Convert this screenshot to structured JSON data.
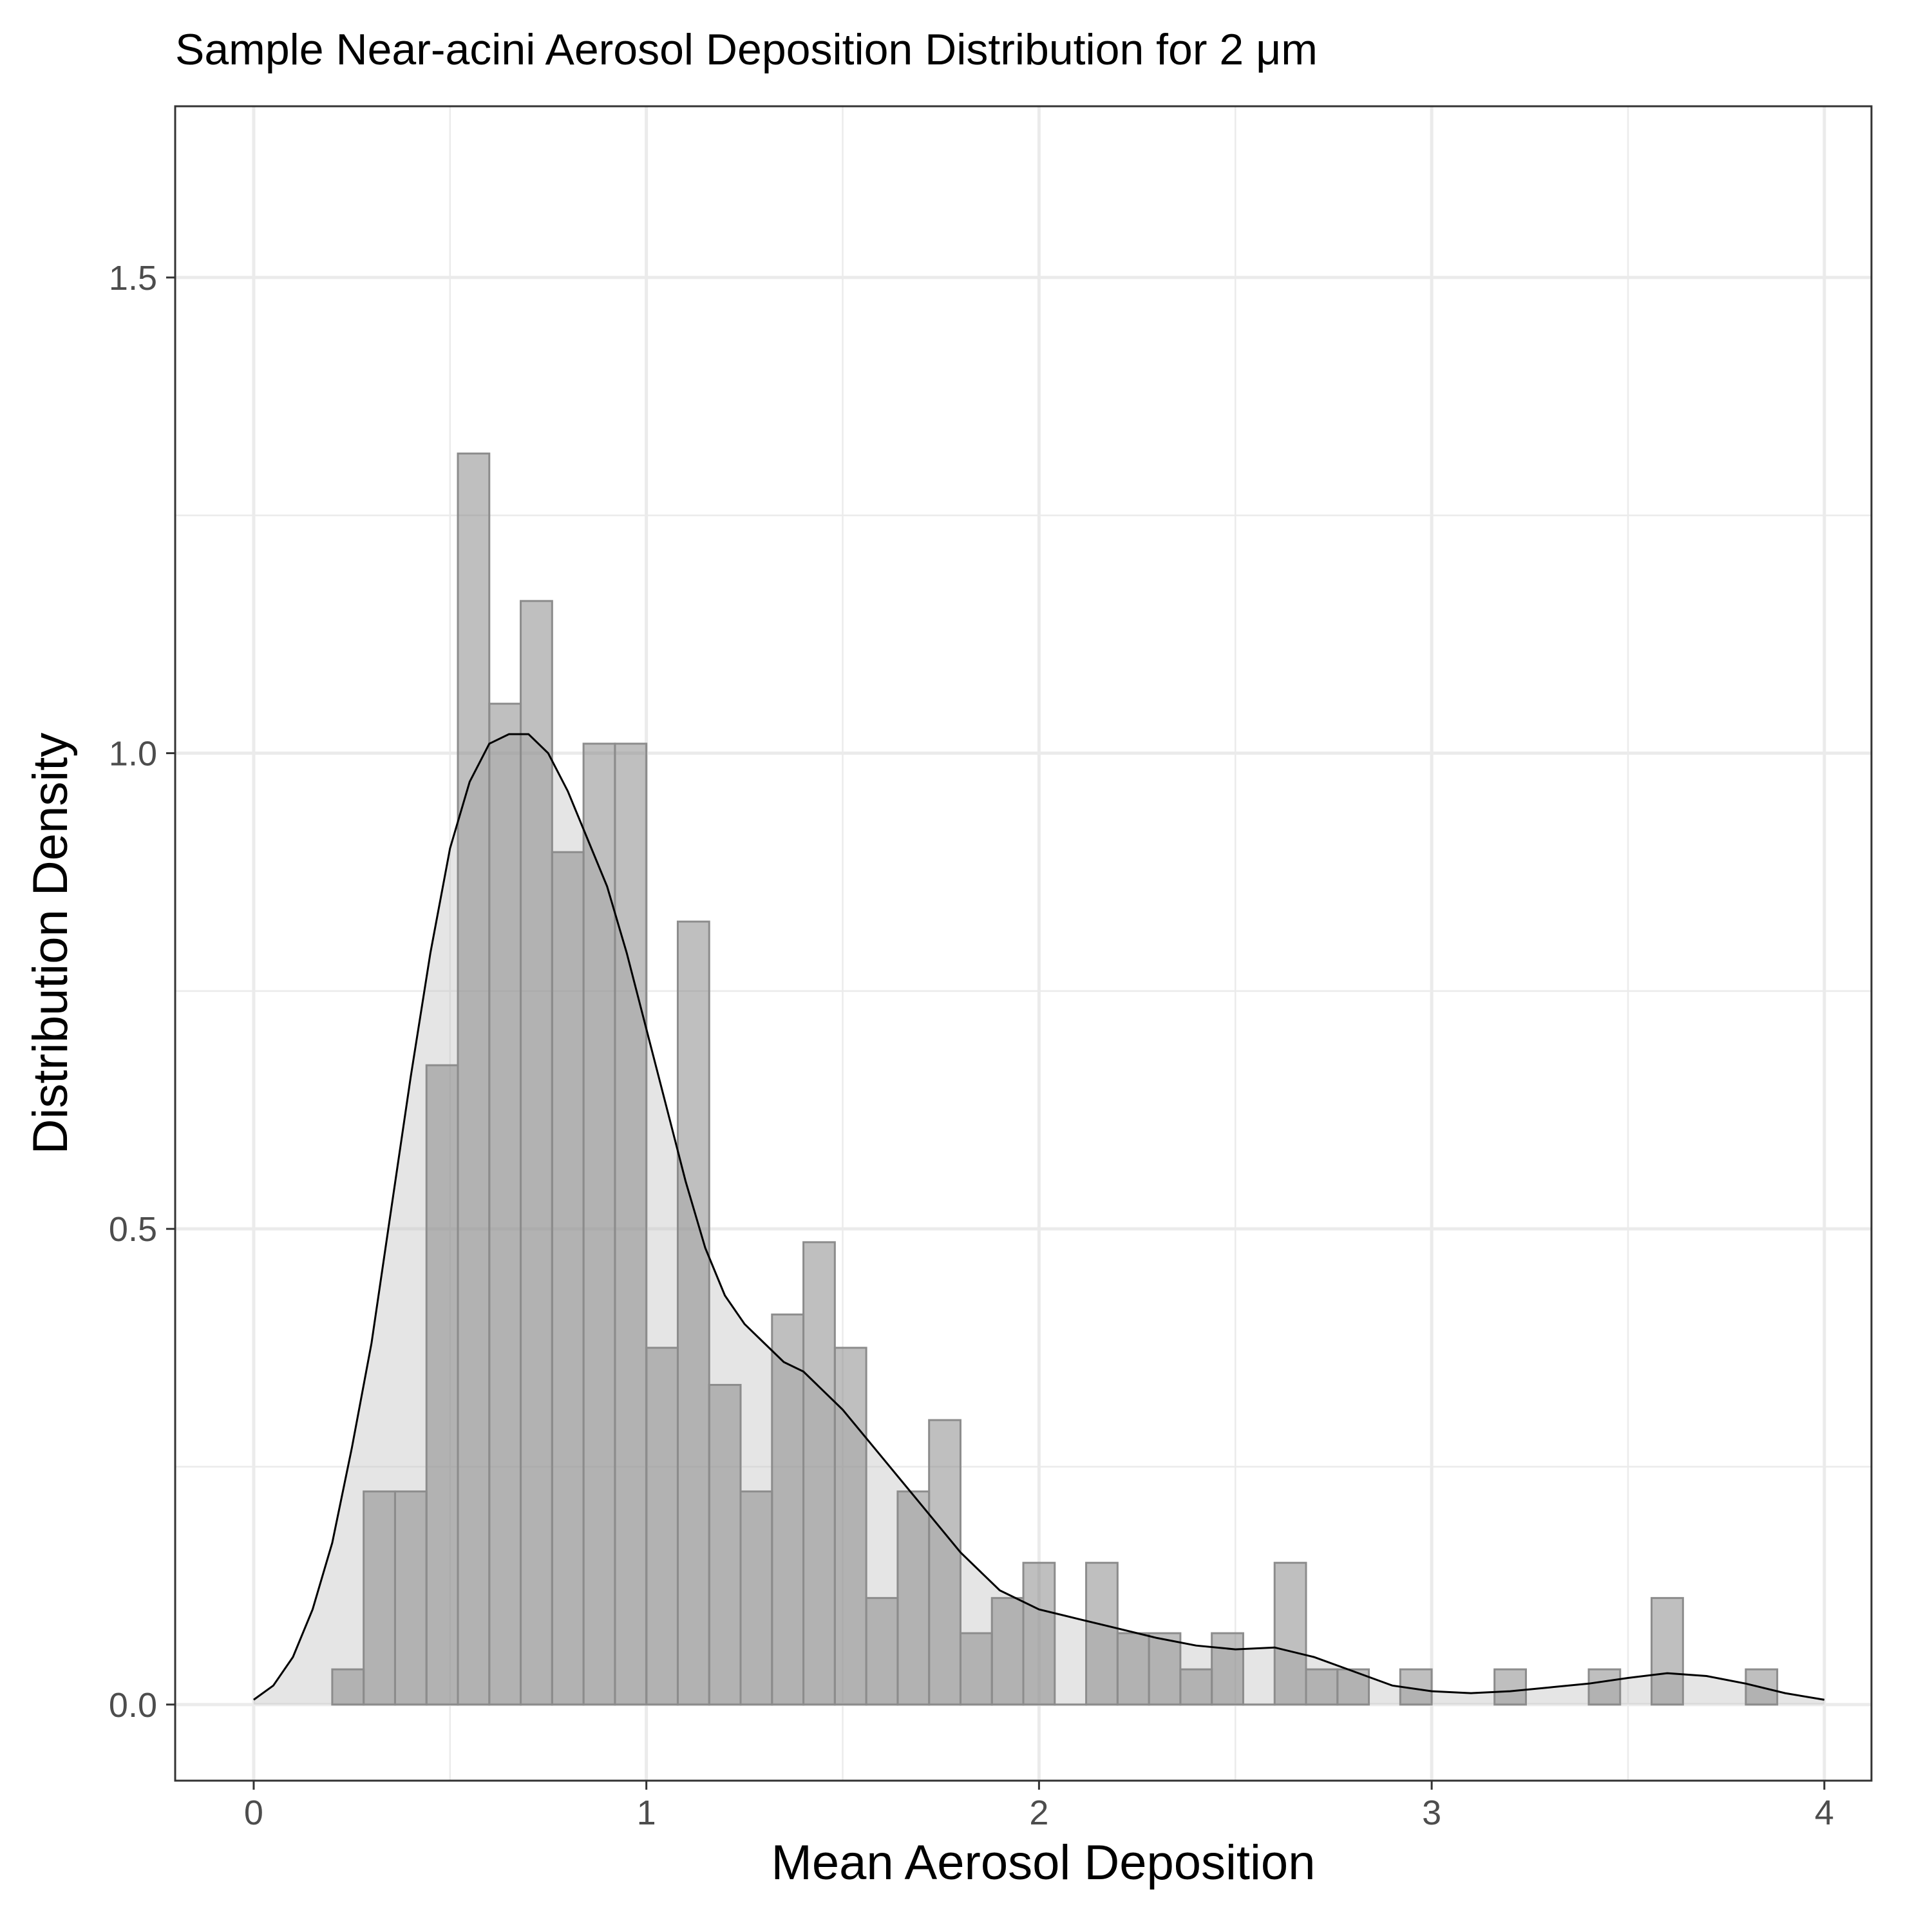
{
  "chart_data": {
    "type": "histogram",
    "title": "Sample Near-acini Aerosol Deposition Distribution for 2 μm",
    "xlabel": "Mean Aerosol Deposition",
    "ylabel": "Distribution Density",
    "xlim": [
      -0.2,
      4.12
    ],
    "ylim": [
      -0.08,
      1.68
    ],
    "x_ticks": [
      0,
      1,
      2,
      3,
      4
    ],
    "x_tick_labels": [
      "0",
      "1",
      "2",
      "3",
      "4"
    ],
    "y_ticks": [
      0.0,
      0.5,
      1.0,
      1.5
    ],
    "y_tick_labels": [
      "0.0",
      "0.5",
      "1.0",
      "1.5"
    ],
    "x_minor_ticks": [
      0.5,
      1.5,
      2.5,
      3.5
    ],
    "y_minor_ticks": [
      0.25,
      0.75,
      1.25
    ],
    "grid": true,
    "legend": "none",
    "bin_width": 0.08,
    "bins": [
      {
        "x0": 0.2,
        "x1": 0.28,
        "y": 0.037
      },
      {
        "x0": 0.28,
        "x1": 0.36,
        "y": 0.224
      },
      {
        "x0": 0.36,
        "x1": 0.44,
        "y": 0.224
      },
      {
        "x0": 0.44,
        "x1": 0.52,
        "y": 0.672
      },
      {
        "x0": 0.52,
        "x1": 0.6,
        "y": 1.315
      },
      {
        "x0": 0.6,
        "x1": 0.68,
        "y": 1.052
      },
      {
        "x0": 0.68,
        "x1": 0.76,
        "y": 1.16
      },
      {
        "x0": 0.76,
        "x1": 0.84,
        "y": 0.896
      },
      {
        "x0": 0.84,
        "x1": 0.92,
        "y": 1.01
      },
      {
        "x0": 0.92,
        "x1": 1.0,
        "y": 1.01
      },
      {
        "x0": 1.0,
        "x1": 1.08,
        "y": 0.375
      },
      {
        "x0": 1.08,
        "x1": 1.16,
        "y": 0.823
      },
      {
        "x0": 1.16,
        "x1": 1.24,
        "y": 0.336
      },
      {
        "x0": 1.24,
        "x1": 1.32,
        "y": 0.224
      },
      {
        "x0": 1.32,
        "x1": 1.4,
        "y": 0.41
      },
      {
        "x0": 1.4,
        "x1": 1.48,
        "y": 0.486
      },
      {
        "x0": 1.48,
        "x1": 1.56,
        "y": 0.375
      },
      {
        "x0": 1.56,
        "x1": 1.64,
        "y": 0.112
      },
      {
        "x0": 1.64,
        "x1": 1.72,
        "y": 0.224
      },
      {
        "x0": 1.72,
        "x1": 1.8,
        "y": 0.299
      },
      {
        "x0": 1.8,
        "x1": 1.88,
        "y": 0.075
      },
      {
        "x0": 1.88,
        "x1": 1.96,
        "y": 0.112
      },
      {
        "x0": 1.96,
        "x1": 2.04,
        "y": 0.149
      },
      {
        "x0": 2.04,
        "x1": 2.12,
        "y": 0.0
      },
      {
        "x0": 2.12,
        "x1": 2.2,
        "y": 0.149
      },
      {
        "x0": 2.2,
        "x1": 2.28,
        "y": 0.075
      },
      {
        "x0": 2.28,
        "x1": 2.36,
        "y": 0.075
      },
      {
        "x0": 2.36,
        "x1": 2.44,
        "y": 0.037
      },
      {
        "x0": 2.44,
        "x1": 2.52,
        "y": 0.075
      },
      {
        "x0": 2.52,
        "x1": 2.6,
        "y": 0.0
      },
      {
        "x0": 2.6,
        "x1": 2.68,
        "y": 0.149
      },
      {
        "x0": 2.68,
        "x1": 2.76,
        "y": 0.037
      },
      {
        "x0": 2.76,
        "x1": 2.84,
        "y": 0.037
      },
      {
        "x0": 2.92,
        "x1": 3.0,
        "y": 0.037
      },
      {
        "x0": 3.16,
        "x1": 3.24,
        "y": 0.037
      },
      {
        "x0": 3.4,
        "x1": 3.48,
        "y": 0.037
      },
      {
        "x0": 3.56,
        "x1": 3.64,
        "y": 0.112
      },
      {
        "x0": 3.8,
        "x1": 3.88,
        "y": 0.037
      }
    ],
    "density": {
      "x": [
        0.0,
        0.05,
        0.1,
        0.15,
        0.2,
        0.25,
        0.3,
        0.35,
        0.4,
        0.45,
        0.5,
        0.55,
        0.6,
        0.65,
        0.7,
        0.75,
        0.8,
        0.85,
        0.9,
        0.95,
        1.0,
        1.05,
        1.1,
        1.15,
        1.2,
        1.25,
        1.3,
        1.35,
        1.4,
        1.5,
        1.6,
        1.7,
        1.8,
        1.9,
        2.0,
        2.1,
        2.2,
        2.3,
        2.4,
        2.5,
        2.6,
        2.7,
        2.8,
        2.9,
        3.0,
        3.1,
        3.2,
        3.3,
        3.4,
        3.5,
        3.6,
        3.7,
        3.8,
        3.9,
        4.0
      ],
      "y": [
        0.005,
        0.02,
        0.05,
        0.1,
        0.17,
        0.27,
        0.38,
        0.52,
        0.66,
        0.79,
        0.9,
        0.97,
        1.01,
        1.02,
        1.02,
        1.0,
        0.96,
        0.91,
        0.86,
        0.79,
        0.71,
        0.63,
        0.55,
        0.48,
        0.43,
        0.4,
        0.38,
        0.36,
        0.35,
        0.31,
        0.26,
        0.21,
        0.16,
        0.12,
        0.1,
        0.09,
        0.08,
        0.07,
        0.062,
        0.058,
        0.06,
        0.05,
        0.035,
        0.02,
        0.014,
        0.012,
        0.014,
        0.018,
        0.022,
        0.028,
        0.033,
        0.03,
        0.022,
        0.012,
        0.005
      ]
    }
  }
}
